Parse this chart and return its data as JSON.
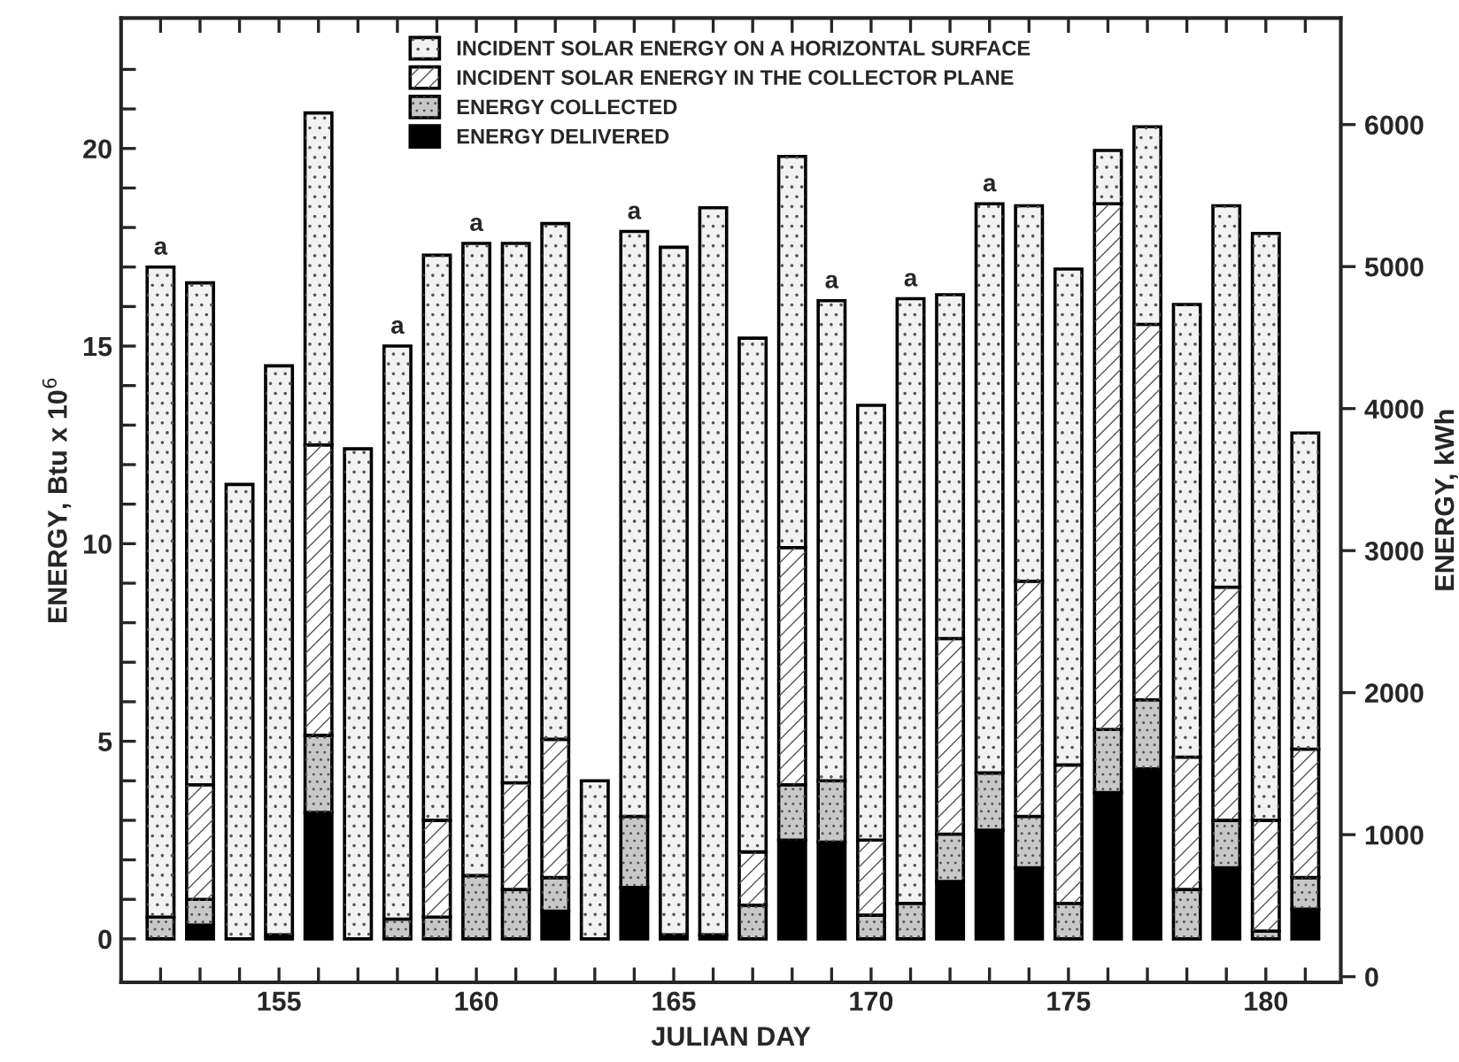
{
  "chart_data": {
    "type": "bar",
    "stacked": true,
    "xlabel": "JULIAN DAY",
    "ylabel": "ENERGY, Btu x 10$^{6}$",
    "y2label": "ENERGY, kWh",
    "x": [
      152,
      153,
      154,
      155,
      156,
      157,
      158,
      159,
      160,
      161,
      162,
      163,
      164,
      165,
      166,
      167,
      168,
      169,
      170,
      171,
      172,
      173,
      174,
      175,
      176,
      177,
      178,
      179,
      180,
      181
    ],
    "series": [
      {
        "name": "ENERGY DELIVERED",
        "color": "#000000",
        "values": [
          0,
          0.35,
          0,
          0.1,
          3.2,
          0,
          0,
          0,
          0,
          0,
          0.7,
          0,
          1.3,
          0.1,
          0.1,
          0,
          2.5,
          2.45,
          0,
          0,
          1.45,
          2.75,
          1.8,
          0,
          3.7,
          4.3,
          0,
          1.8,
          0,
          0.75
        ]
      },
      {
        "name": "ENERGY COLLECTED",
        "color": "#c8c8c8",
        "values": [
          0.55,
          0.65,
          0,
          0,
          1.95,
          0,
          0.5,
          0.55,
          1.6,
          1.25,
          0.85,
          0,
          1.8,
          0,
          0,
          0.85,
          1.4,
          1.55,
          0.6,
          0.9,
          1.2,
          1.45,
          1.3,
          0.9,
          1.6,
          1.75,
          1.25,
          1.2,
          0.2,
          0.8
        ]
      },
      {
        "name": "INCIDENT SOLAR ENERGY IN THE COLLECTOR PLANE",
        "color": "#ffffff",
        "values": [
          0,
          2.9,
          0,
          0,
          7.35,
          0,
          0,
          2.45,
          0,
          2.7,
          3.5,
          0,
          0,
          0,
          0,
          1.35,
          6.0,
          0,
          1.9,
          0,
          4.95,
          0,
          5.95,
          3.5,
          13.3,
          9.5,
          3.35,
          5.9,
          2.8,
          3.25
        ]
      },
      {
        "name": "INCIDENT SOLAR ENERGY ON A HORIZONTAL SURFACE",
        "color": "#f2f2f2",
        "values": [
          16.45,
          12.7,
          11.5,
          14.4,
          8.4,
          12.4,
          14.5,
          14.3,
          16.0,
          13.65,
          13.05,
          4.0,
          14.8,
          17.4,
          18.4,
          13.0,
          9.9,
          12.15,
          11.0,
          15.3,
          8.7,
          14.4,
          9.5,
          12.55,
          1.35,
          5.0,
          11.45,
          9.65,
          14.85,
          8.0
        ]
      }
    ],
    "xlim": [
      151,
      181.9
    ],
    "xticks": [
      {
        "value": 152,
        "label": null
      },
      {
        "value": 153,
        "label": null
      },
      {
        "value": 154,
        "label": null
      },
      155,
      {
        "value": 156,
        "label": null
      },
      {
        "value": 157,
        "label": null
      },
      {
        "value": 158,
        "label": null
      },
      {
        "value": 159,
        "label": null
      },
      160,
      {
        "value": 161,
        "label": null
      },
      {
        "value": 162,
        "label": null
      },
      {
        "value": 163,
        "label": null
      },
      {
        "value": 164,
        "label": null
      },
      165,
      {
        "value": 166,
        "label": null
      },
      {
        "value": 167,
        "label": null
      },
      {
        "value": 168,
        "label": null
      },
      {
        "value": 169,
        "label": null
      },
      170,
      {
        "value": 171,
        "label": null
      },
      {
        "value": 172,
        "label": null
      },
      {
        "value": 173,
        "label": null
      },
      {
        "value": 174,
        "label": null
      },
      175,
      {
        "value": 176,
        "label": null
      },
      {
        "value": 177,
        "label": null
      },
      {
        "value": 178,
        "label": null
      },
      {
        "value": 179,
        "label": null
      },
      180,
      {
        "value": 181,
        "label": null
      }
    ],
    "ylim": [
      -1.1,
      23.3
    ],
    "yticks": [
      0,
      {
        "value": 1,
        "label": null
      },
      {
        "value": 2,
        "label": null
      },
      {
        "value": 3,
        "label": null
      },
      {
        "value": 4,
        "label": null
      },
      5,
      {
        "value": 6,
        "label": null
      },
      {
        "value": 7,
        "label": null
      },
      {
        "value": 8,
        "label": null
      },
      {
        "value": 9,
        "label": null
      },
      10,
      {
        "value": 11,
        "label": null
      },
      {
        "value": 12,
        "label": null
      },
      {
        "value": 13,
        "label": null
      },
      {
        "value": 14,
        "label": null
      },
      15,
      {
        "value": 16,
        "label": null
      },
      {
        "value": 17,
        "label": null
      },
      {
        "value": 18,
        "label": null
      },
      {
        "value": 19,
        "label": null
      },
      20,
      {
        "value": 21,
        "label": null
      },
      {
        "value": 22,
        "label": null
      }
    ],
    "y2lim": [
      -40,
      6750
    ],
    "y2ticks": [
      0,
      1000,
      2000,
      3000,
      4000,
      5000,
      6000
    ],
    "legend": "top",
    "grid": false,
    "annotations": [
      {
        "text": "a",
        "x": 152,
        "y": 17.0
      },
      {
        "text": "a",
        "x": 158,
        "y": 15.0
      },
      {
        "text": "a",
        "x": 160,
        "y": 17.6
      },
      {
        "text": "a",
        "x": 164,
        "y": 17.9
      },
      {
        "text": "a",
        "x": 169,
        "y": 16.15
      },
      {
        "text": "a",
        "x": 171,
        "y": 16.2
      },
      {
        "text": "a",
        "x": 173,
        "y": 18.6
      }
    ]
  }
}
